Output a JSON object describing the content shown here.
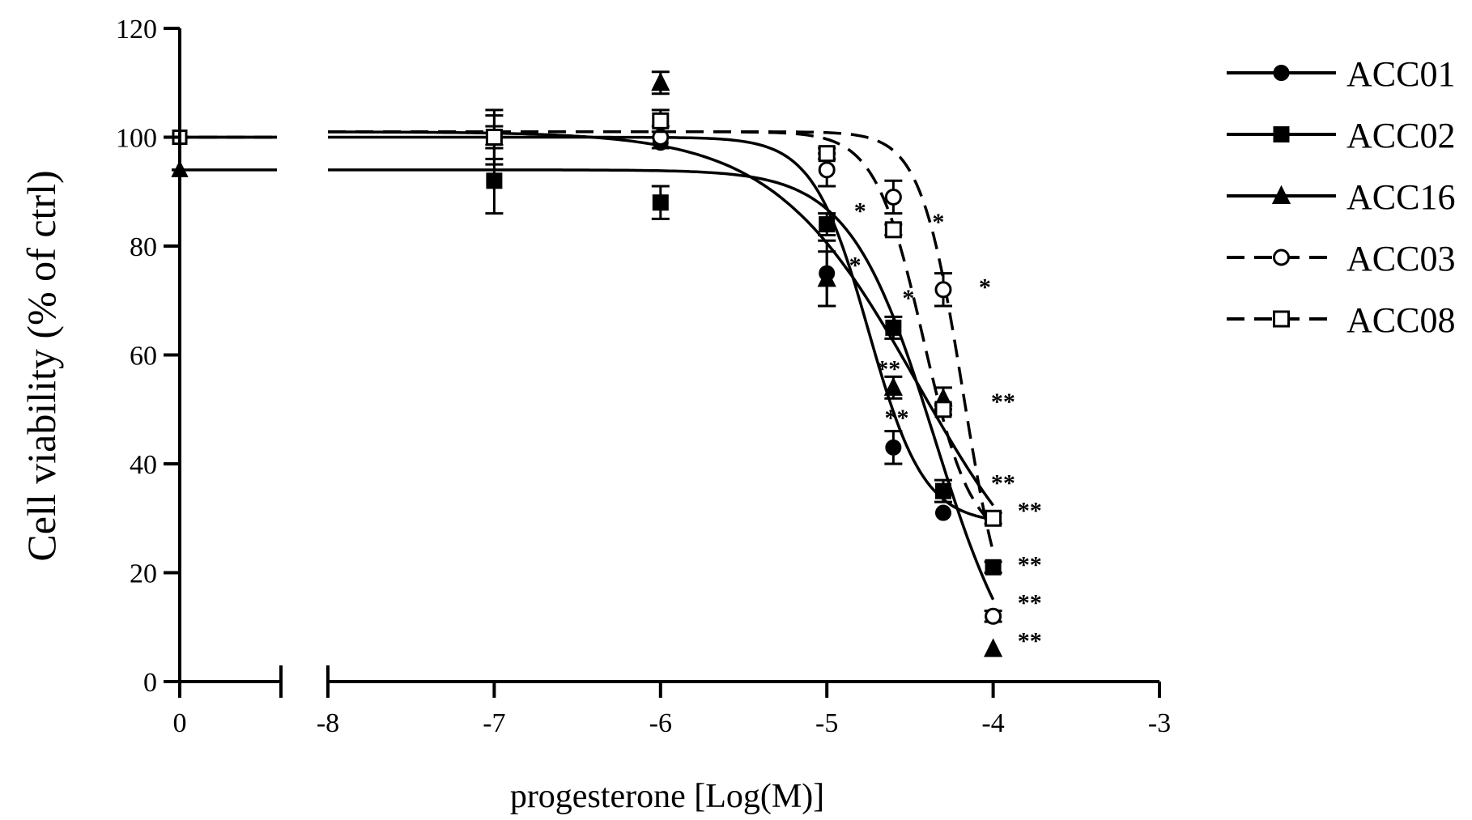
{
  "chart_data": {
    "type": "scatter",
    "title": "",
    "xlabel": "progesterone [Log(M)]",
    "ylabel": "Cell viability (% of ctrl)",
    "xlim_left": [
      -0.5,
      0.6
    ],
    "xlim_right": [
      -8,
      -3
    ],
    "ylim": [
      0,
      120
    ],
    "x_ticks_left": [
      "0"
    ],
    "x_ticks_right": [
      "-8",
      "-7",
      "-6",
      "-5",
      "-4",
      "-3"
    ],
    "y_ticks": [
      "0",
      "20",
      "40",
      "60",
      "80",
      "100",
      "120"
    ],
    "grid": false,
    "legend_position": "top-right",
    "series": [
      {
        "name": "ACC01",
        "marker": "filled-circle",
        "line": "solid",
        "control_y": 100,
        "x": [
          -7,
          -6,
          -5,
          -4.6,
          -4.3,
          -4
        ],
        "y": [
          100,
          99,
          75,
          43,
          31,
          30
        ],
        "err": [
          0,
          0,
          6,
          3,
          0,
          0
        ]
      },
      {
        "name": "ACC02",
        "marker": "filled-square",
        "line": "solid",
        "control_y": 100,
        "x": [
          -7,
          -6,
          -5,
          -4.6,
          -4.3,
          -4
        ],
        "y": [
          92,
          88,
          84,
          65,
          35,
          21
        ],
        "err": [
          6,
          3,
          2,
          2,
          2,
          1
        ]
      },
      {
        "name": "ACC16",
        "marker": "filled-triangle",
        "line": "solid",
        "control_y": 94,
        "x": [
          -7,
          -6,
          -5,
          -4.6,
          -4.3,
          -4
        ],
        "y": [
          100,
          110,
          74,
          54,
          52,
          6
        ],
        "err": [
          5,
          2,
          5,
          2,
          2,
          0
        ]
      },
      {
        "name": "ACC03",
        "marker": "open-circle",
        "line": "dashed",
        "control_y": 100,
        "x": [
          -7,
          -6,
          -5,
          -4.6,
          -4.3,
          -4
        ],
        "y": [
          100,
          100,
          94,
          89,
          72,
          12
        ],
        "err": [
          4,
          2,
          3,
          3,
          3,
          1
        ]
      },
      {
        "name": "ACC08",
        "marker": "open-square",
        "line": "dashed",
        "control_y": 100,
        "x": [
          -7,
          -6,
          -5,
          -4.6,
          -4.3,
          -4
        ],
        "y": [
          100,
          103,
          97,
          83,
          50,
          30
        ],
        "err": [
          2,
          2,
          1,
          1,
          1,
          1
        ]
      }
    ],
    "annotations": [
      {
        "text": "*",
        "x": -4.8,
        "y": 85
      },
      {
        "text": "*",
        "x": -4.83,
        "y": 75
      },
      {
        "text": "*",
        "x": -4.51,
        "y": 69
      },
      {
        "text": "*",
        "x": -4.33,
        "y": 83
      },
      {
        "text": "*",
        "x": -4.05,
        "y": 71
      },
      {
        "text": "**",
        "x": -4.63,
        "y": 56
      },
      {
        "text": "**",
        "x": -4.58,
        "y": 47
      },
      {
        "text": "**",
        "x": -3.94,
        "y": 50
      },
      {
        "text": "**",
        "x": -3.94,
        "y": 35
      },
      {
        "text": "**",
        "x": -3.78,
        "y": 30
      },
      {
        "text": "**",
        "x": -3.78,
        "y": 20
      },
      {
        "text": "**",
        "x": -3.78,
        "y": 13
      },
      {
        "text": "**",
        "x": -3.78,
        "y": 6
      }
    ]
  }
}
